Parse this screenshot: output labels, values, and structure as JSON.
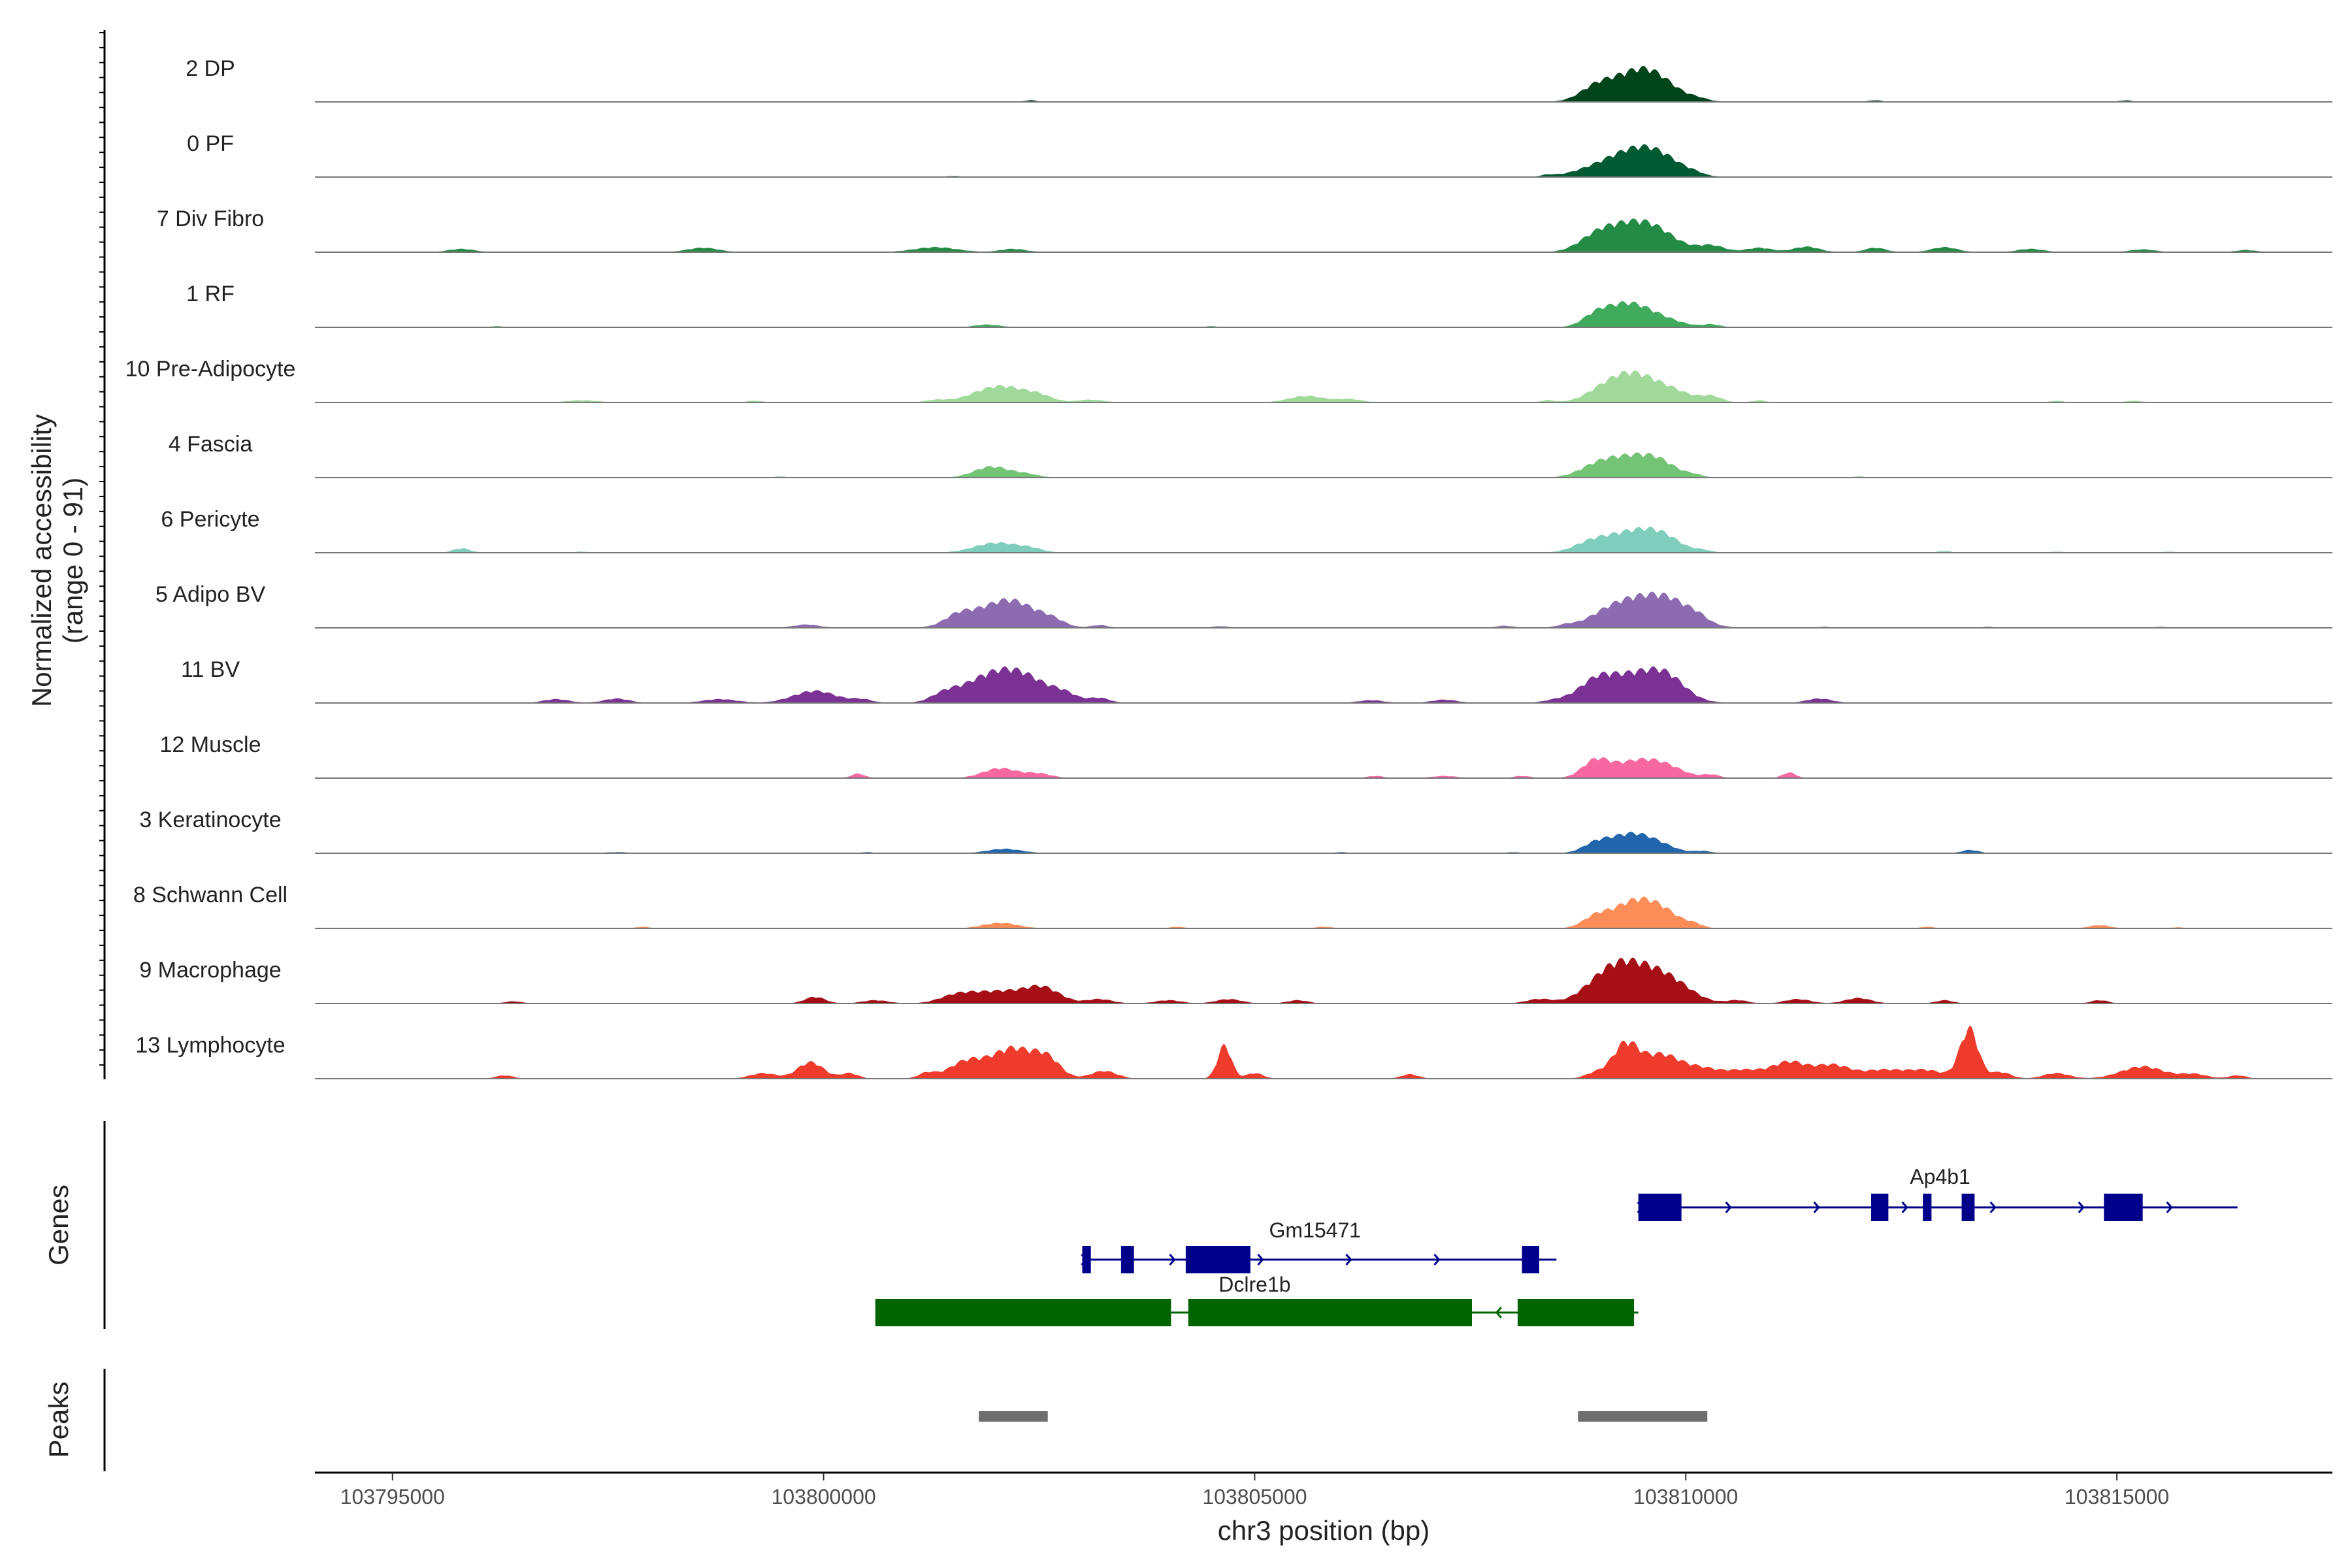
{
  "chart_data": {
    "type": "area",
    "title": "",
    "chromosome": "chr3",
    "xlabel": "chr3 position (bp)",
    "ylabel": [
      "Normalized accessibility",
      "(range 0 - 91)"
    ],
    "xlim": [
      103794100,
      103817500
    ],
    "ylim": [
      0,
      91
    ],
    "x_ticks": [
      103795000,
      103800000,
      103805000,
      103810000,
      103815000
    ],
    "x_tick_labels": [
      "103795000",
      "103800000",
      "103805000",
      "103810000",
      "103815000"
    ],
    "tracks": [
      {
        "name": "2 DP",
        "color": "#00441b",
        "peaks": [
          [
            103808950,
            180,
            18
          ],
          [
            103809400,
            320,
            45
          ],
          [
            103809650,
            250,
            22
          ],
          [
            103810150,
            120,
            4
          ],
          [
            103802400,
            80,
            3
          ],
          [
            103812200,
            80,
            3
          ],
          [
            103815100,
            70,
            3
          ]
        ]
      },
      {
        "name": "0 PF",
        "color": "#005a32",
        "peaks": [
          [
            103809000,
            300,
            15
          ],
          [
            103809450,
            300,
            42
          ],
          [
            103809750,
            250,
            18
          ],
          [
            103810100,
            100,
            3
          ],
          [
            103801500,
            80,
            2
          ],
          [
            103808400,
            80,
            3
          ]
        ]
      },
      {
        "name": "7 Div Fibro",
        "color": "#238b45",
        "peaks": [
          [
            103795800,
            150,
            6
          ],
          [
            103798600,
            180,
            8
          ],
          [
            103801300,
            250,
            9
          ],
          [
            103802200,
            150,
            6
          ],
          [
            103808950,
            200,
            20
          ],
          [
            103809350,
            300,
            46
          ],
          [
            103809700,
            250,
            22
          ],
          [
            103810300,
            150,
            12
          ],
          [
            103810850,
            150,
            8
          ],
          [
            103811400,
            150,
            10
          ],
          [
            103812200,
            120,
            8
          ],
          [
            103813000,
            150,
            9
          ],
          [
            103814000,
            150,
            6
          ],
          [
            103815300,
            150,
            5
          ],
          [
            103816500,
            120,
            4
          ]
        ]
      },
      {
        "name": "1 RF",
        "color": "#41ab5d",
        "peaks": [
          [
            103796200,
            80,
            2
          ],
          [
            103801900,
            150,
            5
          ],
          [
            103808950,
            150,
            16
          ],
          [
            103809300,
            250,
            40
          ],
          [
            103809700,
            250,
            14
          ],
          [
            103810300,
            100,
            5
          ],
          [
            103804500,
            80,
            2
          ]
        ]
      },
      {
        "name": "10 Pre-Adipocyte",
        "color": "#a1d99b",
        "peaks": [
          [
            103797200,
            180,
            4
          ],
          [
            103799200,
            100,
            3
          ],
          [
            103801300,
            120,
            4
          ],
          [
            103802050,
            300,
            30
          ],
          [
            103802500,
            150,
            8
          ],
          [
            103803100,
            150,
            5
          ],
          [
            103805600,
            200,
            12
          ],
          [
            103806100,
            150,
            6
          ],
          [
            103808400,
            80,
            4
          ],
          [
            103809000,
            200,
            14
          ],
          [
            103809350,
            250,
            48
          ],
          [
            103809800,
            250,
            22
          ],
          [
            103810300,
            120,
            10
          ],
          [
            103810850,
            80,
            4
          ],
          [
            103814300,
            80,
            3
          ],
          [
            103815200,
            100,
            3
          ]
        ]
      },
      {
        "name": "4 Fascia",
        "color": "#74c476",
        "peaks": [
          [
            103801950,
            200,
            20
          ],
          [
            103802350,
            150,
            6
          ],
          [
            103808950,
            200,
            14
          ],
          [
            103809350,
            300,
            36
          ],
          [
            103809700,
            200,
            18
          ],
          [
            103810100,
            100,
            4
          ],
          [
            103799500,
            80,
            2
          ],
          [
            103812000,
            80,
            2
          ]
        ]
      },
      {
        "name": "6 Pericyte",
        "color": "#7fcdbb",
        "peaks": [
          [
            103795800,
            100,
            8
          ],
          [
            103797200,
            80,
            2
          ],
          [
            103802000,
            250,
            18
          ],
          [
            103802400,
            150,
            6
          ],
          [
            103808900,
            200,
            16
          ],
          [
            103809400,
            300,
            38
          ],
          [
            103809750,
            200,
            18
          ],
          [
            103810200,
            100,
            4
          ],
          [
            103813000,
            80,
            3
          ],
          [
            103814300,
            80,
            2
          ],
          [
            103815600,
            80,
            2
          ]
        ]
      },
      {
        "name": "5 Adipo BV",
        "color": "#8c6bb1",
        "peaks": [
          [
            103799800,
            150,
            6
          ],
          [
            103801550,
            150,
            14
          ],
          [
            103801900,
            300,
            28
          ],
          [
            103802250,
            250,
            34
          ],
          [
            103802650,
            150,
            12
          ],
          [
            103803200,
            100,
            5
          ],
          [
            103804600,
            100,
            3
          ],
          [
            103807900,
            100,
            4
          ],
          [
            103808600,
            100,
            4
          ],
          [
            103809100,
            250,
            18
          ],
          [
            103809550,
            350,
            50
          ],
          [
            103809900,
            250,
            20
          ],
          [
            103810150,
            100,
            6
          ],
          [
            103811600,
            80,
            2
          ],
          [
            103813500,
            80,
            2
          ],
          [
            103815500,
            80,
            2
          ]
        ]
      },
      {
        "name": "11 BV",
        "color": "#7b3294",
        "peaks": [
          [
            103796900,
            150,
            7
          ],
          [
            103797600,
            150,
            8
          ],
          [
            103798800,
            200,
            7
          ],
          [
            103799900,
            250,
            22
          ],
          [
            103800450,
            120,
            6
          ],
          [
            103801400,
            150,
            12
          ],
          [
            103801850,
            300,
            36
          ],
          [
            103802300,
            300,
            46
          ],
          [
            103802800,
            150,
            12
          ],
          [
            103803200,
            120,
            9
          ],
          [
            103806350,
            150,
            5
          ],
          [
            103807200,
            150,
            6
          ],
          [
            103808500,
            150,
            5
          ],
          [
            103808950,
            200,
            30
          ],
          [
            103809450,
            350,
            52
          ],
          [
            103809800,
            200,
            24
          ],
          [
            103811550,
            150,
            8
          ]
        ]
      },
      {
        "name": "12 Muscle",
        "color": "#f768a1",
        "peaks": [
          [
            103800400,
            80,
            8
          ],
          [
            103802050,
            200,
            18
          ],
          [
            103802500,
            150,
            8
          ],
          [
            103806400,
            100,
            4
          ],
          [
            103807200,
            150,
            4
          ],
          [
            103808100,
            100,
            4
          ],
          [
            103808950,
            150,
            28
          ],
          [
            103809450,
            300,
            32
          ],
          [
            103809800,
            200,
            10
          ],
          [
            103810300,
            100,
            6
          ],
          [
            103811200,
            80,
            10
          ]
        ]
      },
      {
        "name": "3 Keratinocyte",
        "color": "#2166ac",
        "peaks": [
          [
            103797600,
            150,
            2
          ],
          [
            103802100,
            200,
            8
          ],
          [
            103808950,
            150,
            14
          ],
          [
            103809350,
            250,
            34
          ],
          [
            103809700,
            200,
            10
          ],
          [
            103810200,
            100,
            4
          ],
          [
            103813300,
            100,
            6
          ],
          [
            103800500,
            80,
            2
          ],
          [
            103806000,
            80,
            2
          ],
          [
            103808000,
            80,
            2
          ]
        ]
      },
      {
        "name": "8 Schwann Cell",
        "color": "#fc8d59",
        "peaks": [
          [
            103797900,
            80,
            3
          ],
          [
            103802050,
            200,
            10
          ],
          [
            103804100,
            80,
            3
          ],
          [
            103805800,
            100,
            3
          ],
          [
            103808950,
            150,
            18
          ],
          [
            103809400,
            250,
            48
          ],
          [
            103809750,
            200,
            22
          ],
          [
            103810100,
            100,
            6
          ],
          [
            103812800,
            80,
            3
          ],
          [
            103814800,
            120,
            6
          ],
          [
            103815700,
            80,
            2
          ]
        ]
      },
      {
        "name": "9 Macrophage",
        "color": "#a50f15",
        "peaks": [
          [
            103796400,
            100,
            4
          ],
          [
            103799900,
            120,
            12
          ],
          [
            103800600,
            150,
            6
          ],
          [
            103801550,
            200,
            14
          ],
          [
            103802050,
            300,
            22
          ],
          [
            103802550,
            200,
            26
          ],
          [
            103803200,
            150,
            8
          ],
          [
            103804000,
            150,
            6
          ],
          [
            103804700,
            150,
            8
          ],
          [
            103805500,
            120,
            6
          ],
          [
            103808300,
            150,
            8
          ],
          [
            103809050,
            250,
            32
          ],
          [
            103809400,
            300,
            60
          ],
          [
            103809850,
            250,
            30
          ],
          [
            103810600,
            120,
            6
          ],
          [
            103811300,
            150,
            8
          ],
          [
            103812000,
            150,
            10
          ],
          [
            103813000,
            100,
            6
          ],
          [
            103814800,
            100,
            6
          ]
        ]
      },
      {
        "name": "13 Lymphocyte",
        "color": "#ef3b2c",
        "peaks": [
          [
            103796300,
            100,
            6
          ],
          [
            103799300,
            150,
            10
          ],
          [
            103799850,
            150,
            30
          ],
          [
            103800300,
            100,
            10
          ],
          [
            103801200,
            100,
            10
          ],
          [
            103801650,
            200,
            30
          ],
          [
            103802200,
            250,
            55
          ],
          [
            103802600,
            150,
            30
          ],
          [
            103803250,
            150,
            14
          ],
          [
            103804650,
            80,
            60
          ],
          [
            103805000,
            100,
            10
          ],
          [
            103806800,
            100,
            8
          ],
          [
            103808950,
            120,
            10
          ],
          [
            103809300,
            150,
            62
          ],
          [
            103809700,
            200,
            40
          ],
          [
            103810150,
            250,
            20
          ],
          [
            103810700,
            200,
            14
          ],
          [
            103811200,
            200,
            30
          ],
          [
            103811700,
            200,
            24
          ],
          [
            103812300,
            250,
            16
          ],
          [
            103812800,
            200,
            14
          ],
          [
            103813200,
            100,
            16
          ],
          [
            103813300,
            100,
            80
          ],
          [
            103813650,
            120,
            12
          ],
          [
            103814300,
            150,
            10
          ],
          [
            103815300,
            250,
            22
          ],
          [
            103815900,
            150,
            8
          ],
          [
            103816400,
            100,
            6
          ]
        ]
      }
    ],
    "genes_track": {
      "label": "Genes",
      "genes": [
        {
          "name": "Ap4b1",
          "strand": "+",
          "color": "#00008b",
          "start": 103809450,
          "end": 103816400,
          "exons": [
            [
              103809450,
              103809950
            ],
            [
              103812150,
              103812350
            ],
            [
              103812750,
              103812850
            ],
            [
              103813200,
              103813350
            ],
            [
              103814850,
              103815300
            ]
          ]
        },
        {
          "name": "Gm15471",
          "strand": "+",
          "color": "#00008b",
          "start": 103803000,
          "end": 103808500,
          "exons": [
            [
              103803000,
              103803100
            ],
            [
              103803450,
              103803600
            ],
            [
              103804200,
              103804950
            ],
            [
              103808100,
              103808300
            ]
          ]
        },
        {
          "name": "Dclre1b",
          "strand": "-",
          "color": "#006400",
          "start": 103800600,
          "end": 103809450,
          "exons": [
            [
              103800600,
              103804030
            ],
            [
              103804230,
              103807520
            ],
            [
              103808050,
              103809400
            ]
          ]
        }
      ]
    },
    "peaks_track": {
      "label": "Peaks",
      "color": "#6e6e6e",
      "regions": [
        [
          103801800,
          103802600
        ],
        [
          103808750,
          103810250
        ]
      ]
    }
  }
}
